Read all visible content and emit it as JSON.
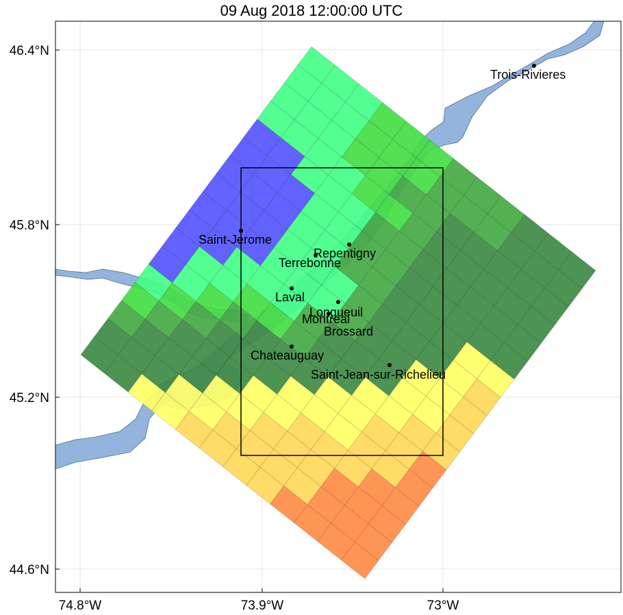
{
  "title": "09 Aug 2018 12:00:00 UTC",
  "colors": {
    "water": "#93b4dd",
    "cell_blue": "#5555ff",
    "cell_aqua": "#44ff88",
    "cell_lime": "#44dd44",
    "cell_green": "#44aa44",
    "cell_dkgreen": "#3e8a44",
    "cell_yellow": "#ffff66",
    "cell_lightorange": "#ffd85a",
    "cell_orange": "#ffb54e",
    "cell_redorange": "#ff8c46",
    "box": "#000000"
  },
  "axes": {
    "lat_ticks": [
      "46.4°N",
      "45.8°N",
      "45.2°N",
      "44.6°N"
    ],
    "lon_ticks": [
      "74.8°W",
      "73.9°W",
      "73°W"
    ]
  },
  "grid": {
    "cols": 12,
    "rows": 17,
    "cells": [
      "AAALLLGGGDDD",
      "AAALLLGGGDDD",
      "AAALLGGDDDDD",
      "AAAALLGDDDDD",
      "BBAAAGGDDDDD",
      "BBBAAGGDDDDD",
      "BBBAAGGDDDYY",
      "BBBAAAGDDDYO",
      "BBBAAAGDDYYO",
      "BBAAAGDDDYYO",
      "BAALLGDDYYOO",
      "BALGDDDYYOOR",
      "ALGDDDYYYOOR",
      "LGDDDYYOOORR",
      "GDDDYYOOORRR",
      "DDDYYOOOORRR",
      "DDYYOOOORRRR"
    ]
  },
  "cities": [
    {
      "name": "Trois-Rivieres"
    },
    {
      "name": "Saint-Jerome"
    },
    {
      "name": "Repentigny"
    },
    {
      "name": "Terrebonne"
    },
    {
      "name": "Laval"
    },
    {
      "name": "Longueuil"
    },
    {
      "name": "Montreal"
    },
    {
      "name": "Brossard"
    },
    {
      "name": "Chateauguay"
    },
    {
      "name": "Saint-Jean-sur-Richelieu"
    }
  ]
}
